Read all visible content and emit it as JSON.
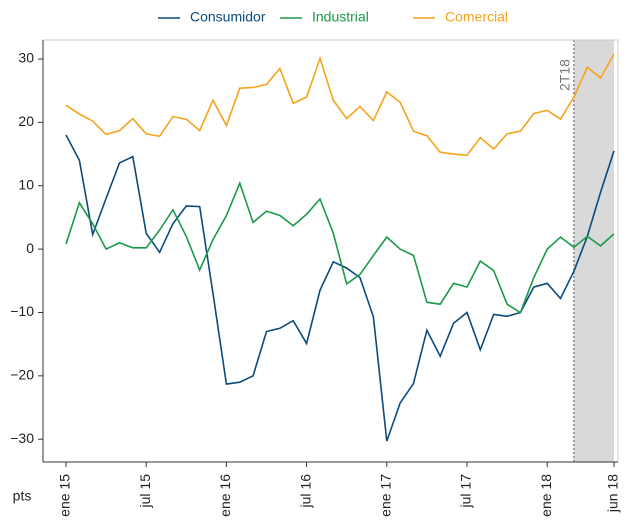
{
  "chart_data": {
    "type": "line",
    "y_label": "pts",
    "categories": [
      "ene 15",
      null,
      null,
      null,
      null,
      null,
      "jul 15",
      null,
      null,
      null,
      null,
      null,
      "ene 16",
      null,
      null,
      null,
      null,
      null,
      "jul 16",
      null,
      null,
      null,
      null,
      null,
      "ene 17",
      null,
      null,
      null,
      null,
      null,
      "jul 17",
      null,
      null,
      null,
      null,
      null,
      "ene 18",
      null,
      null,
      null,
      null,
      "jun 18"
    ],
    "series": [
      {
        "name": "Consumidor",
        "color": "#0d4a7c",
        "values": [
          18,
          14,
          2.3,
          8,
          13.6,
          14.6,
          2.5,
          -0.5,
          4,
          6.8,
          6.7,
          -7,
          -21.3,
          -21,
          -20,
          -13,
          -12.5,
          -11.3,
          -14.9,
          -6.5,
          -2,
          -3,
          -4.5,
          -10.7,
          -30.3,
          -24.3,
          -21.2,
          -12.8,
          -16.9,
          -11.7,
          -10,
          -15.9,
          -10.3,
          -10.6,
          -10,
          -6,
          -5.4,
          -7.8,
          -3.5,
          2,
          9,
          15.5
        ]
      },
      {
        "name": "Industrial",
        "color": "#1a9a4a",
        "values": [
          0.8,
          7.3,
          4,
          0,
          1,
          0.2,
          0.2,
          3,
          6.2,
          2,
          -3.3,
          1.5,
          5.3,
          10.4,
          4.2,
          6,
          5.3,
          3.7,
          5.5,
          7.9,
          2.5,
          -5.5,
          -4,
          -1,
          1.9,
          0,
          -1,
          -8.4,
          -8.7,
          -5.4,
          -6,
          -1.9,
          -3.4,
          -8.7,
          -10,
          -4.5,
          0,
          1.9,
          0.3,
          2,
          0.5,
          2.4
        ]
      },
      {
        "name": "Comercial",
        "color": "#f5a31a",
        "values": [
          22.7,
          21.3,
          20.2,
          18.1,
          18.7,
          20.6,
          18.2,
          17.8,
          20.9,
          20.5,
          18.7,
          23.5,
          19.5,
          25.4,
          25.5,
          26,
          28.5,
          23,
          24,
          30.1,
          23.5,
          20.6,
          22.5,
          20.3,
          24.8,
          23.2,
          18.6,
          17.9,
          15.3,
          15,
          14.8,
          17.6,
          15.8,
          18.2,
          18.6,
          21.4,
          21.9,
          20.5,
          24,
          28.7,
          27,
          30.8
        ]
      }
    ],
    "ylim": [
      -33.6,
      33
    ],
    "yticks": [
      {
        "value": -30,
        "label": "−30"
      },
      {
        "value": -20,
        "label": "−20"
      },
      {
        "value": -10,
        "label": "−10"
      },
      0,
      10,
      20,
      30
    ],
    "shade": {
      "from": 38,
      "label": "2T18",
      "color": "#d9d9d9"
    },
    "legend": "top"
  }
}
